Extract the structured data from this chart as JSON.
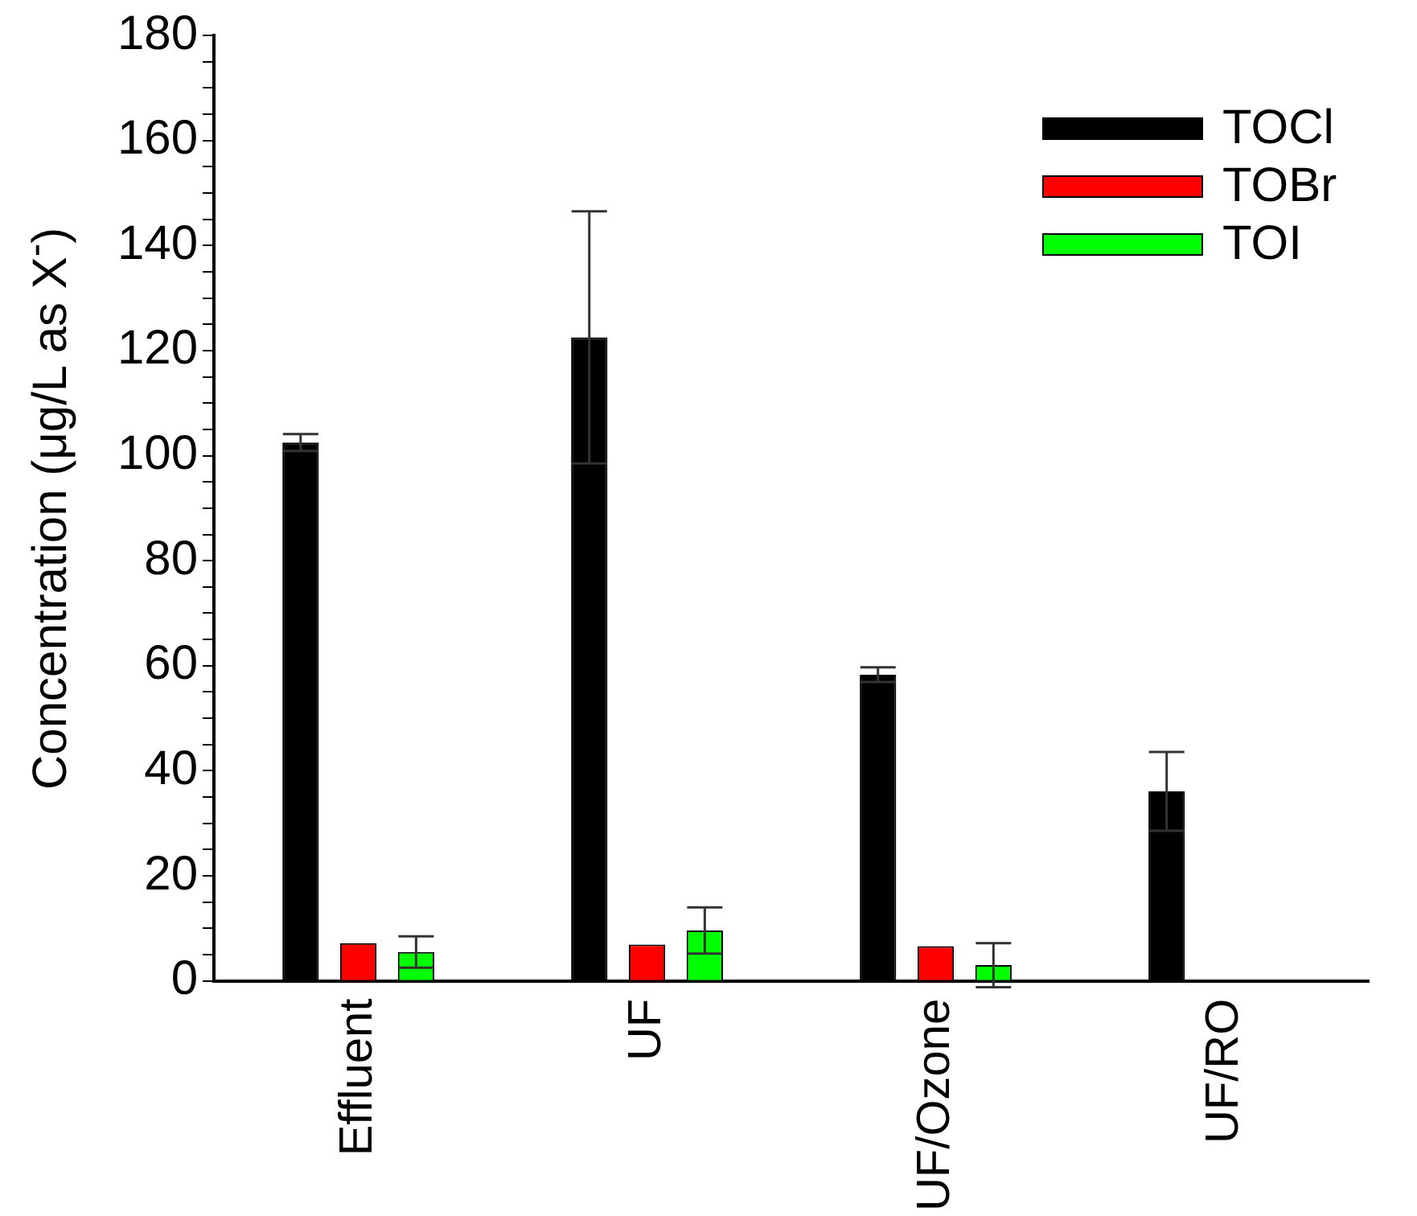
{
  "chart_data": {
    "type": "bar",
    "ylabel": "Concentration (μg/L as X$^{-}$)",
    "categories": [
      "Effluent",
      "UF",
      "UF/Ozone",
      "UF/RO"
    ],
    "series": [
      {
        "name": "TOCl",
        "color": "#000000",
        "values": [
          102.5,
          122.5,
          58.3,
          36.1
        ],
        "errors": [
          1.6,
          24,
          1.4,
          7.5
        ]
      },
      {
        "name": "TOBr",
        "color": "#ff0000",
        "values": [
          7.2,
          6.9,
          6.6,
          null
        ],
        "errors": [
          null,
          null,
          null,
          null
        ]
      },
      {
        "name": "TOI",
        "color": "#00ff00",
        "values": [
          5.5,
          9.6,
          3.0,
          null
        ],
        "errors": [
          3.0,
          4.4,
          4.2,
          null
        ]
      }
    ],
    "ylim": [
      0,
      180
    ],
    "yticks": [
      0,
      {
        "value": 5,
        "label": null
      },
      {
        "value": 10,
        "label": null
      },
      {
        "value": 15,
        "label": null
      },
      20,
      {
        "value": 25,
        "label": null
      },
      {
        "value": 30,
        "label": null
      },
      {
        "value": 35,
        "label": null
      },
      40,
      {
        "value": 45,
        "label": null
      },
      {
        "value": 50,
        "label": null
      },
      {
        "value": 55,
        "label": null
      },
      60,
      {
        "value": 65,
        "label": null
      },
      {
        "value": 70,
        "label": null
      },
      {
        "value": 75,
        "label": null
      },
      80,
      {
        "value": 85,
        "label": null
      },
      {
        "value": 90,
        "label": null
      },
      {
        "value": 95,
        "label": null
      },
      100,
      {
        "value": 105,
        "label": null
      },
      {
        "value": 110,
        "label": null
      },
      {
        "value": 115,
        "label": null
      },
      120,
      {
        "value": 125,
        "label": null
      },
      {
        "value": 130,
        "label": null
      },
      {
        "value": 135,
        "label": null
      },
      140,
      {
        "value": 145,
        "label": null
      },
      {
        "value": 150,
        "label": null
      },
      {
        "value": 155,
        "label": null
      },
      160,
      {
        "value": 165,
        "label": null
      },
      {
        "value": 170,
        "label": null
      },
      {
        "value": 175,
        "label": null
      },
      180
    ],
    "grid": false,
    "legend": "top right"
  }
}
